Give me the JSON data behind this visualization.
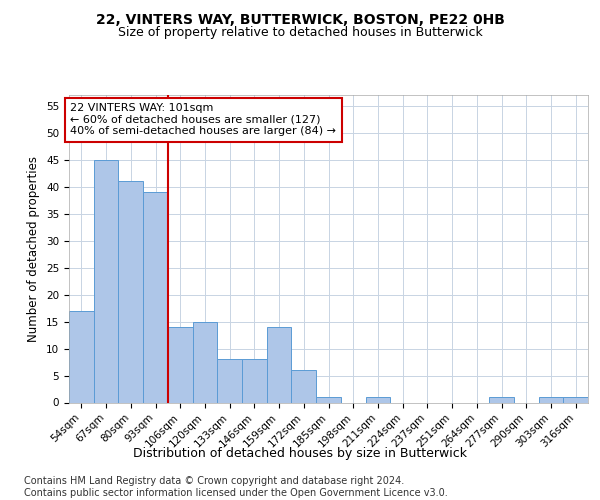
{
  "title1": "22, VINTERS WAY, BUTTERWICK, BOSTON, PE22 0HB",
  "title2": "Size of property relative to detached houses in Butterwick",
  "xlabel": "Distribution of detached houses by size in Butterwick",
  "ylabel": "Number of detached properties",
  "categories": [
    "54sqm",
    "67sqm",
    "80sqm",
    "93sqm",
    "106sqm",
    "120sqm",
    "133sqm",
    "146sqm",
    "159sqm",
    "172sqm",
    "185sqm",
    "198sqm",
    "211sqm",
    "224sqm",
    "237sqm",
    "251sqm",
    "264sqm",
    "277sqm",
    "290sqm",
    "303sqm",
    "316sqm"
  ],
  "values": [
    17,
    45,
    41,
    39,
    14,
    15,
    8,
    8,
    14,
    6,
    1,
    0,
    1,
    0,
    0,
    0,
    0,
    1,
    0,
    1,
    1
  ],
  "bar_color": "#aec6e8",
  "bar_edge_color": "#5b9bd5",
  "vline_x": 3.5,
  "vline_color": "#cc0000",
  "annotation_text": "22 VINTERS WAY: 101sqm\n← 60% of detached houses are smaller (127)\n40% of semi-detached houses are larger (84) →",
  "annotation_box_color": "#ffffff",
  "annotation_box_edge_color": "#cc0000",
  "ylim": [
    0,
    57
  ],
  "yticks": [
    0,
    5,
    10,
    15,
    20,
    25,
    30,
    35,
    40,
    45,
    50,
    55
  ],
  "footnote": "Contains HM Land Registry data © Crown copyright and database right 2024.\nContains public sector information licensed under the Open Government Licence v3.0.",
  "bg_color": "#ffffff",
  "grid_color": "#c8d4e3",
  "title1_fontsize": 10,
  "title2_fontsize": 9,
  "xlabel_fontsize": 9,
  "ylabel_fontsize": 8.5,
  "tick_fontsize": 7.5,
  "footnote_fontsize": 7,
  "annotation_fontsize": 8
}
